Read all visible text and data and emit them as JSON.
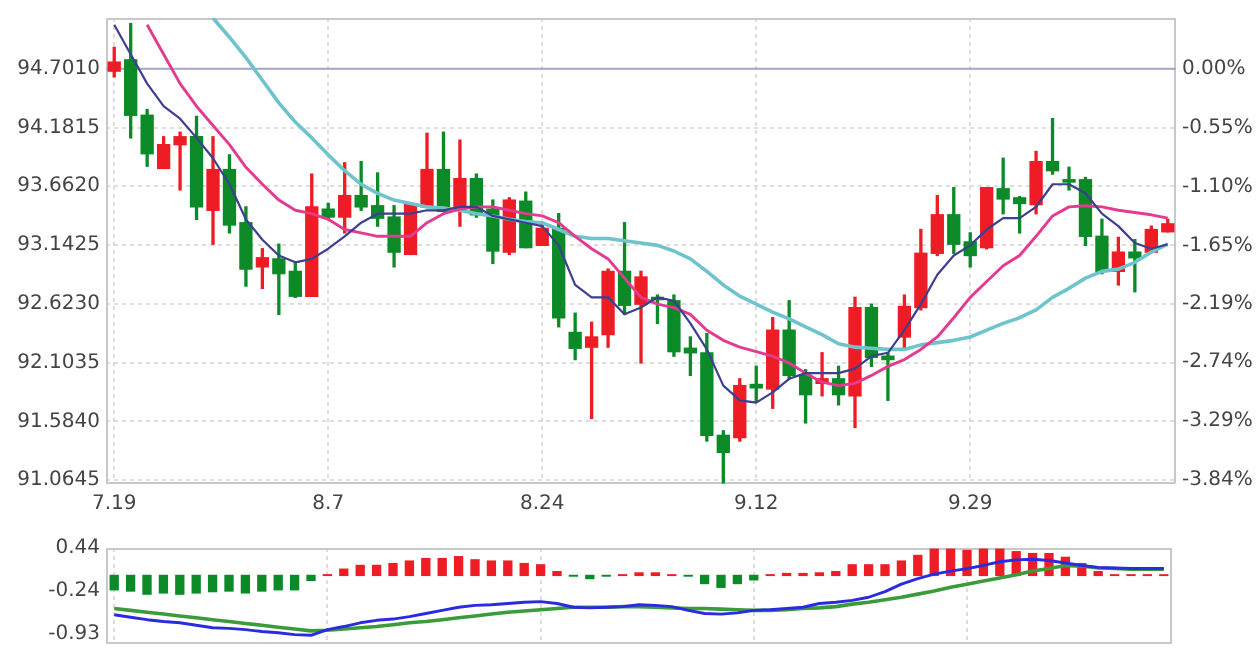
{
  "chart_data": [
    {
      "type": "candlestick",
      "categories": [
        "7.19",
        null,
        null,
        null,
        null,
        null,
        null,
        null,
        null,
        null,
        null,
        null,
        null,
        "8.7",
        null,
        null,
        null,
        null,
        null,
        null,
        null,
        null,
        null,
        null,
        null,
        null,
        "8.24",
        null,
        null,
        null,
        null,
        null,
        null,
        null,
        null,
        null,
        null,
        null,
        null,
        "9.12",
        null,
        null,
        null,
        null,
        null,
        null,
        null,
        null,
        null,
        null,
        null,
        null,
        "9.29",
        null,
        null,
        null,
        null,
        null,
        null,
        null,
        null,
        null,
        null,
        null,
        null
      ],
      "ohlc": [
        [
          94.68,
          94.89,
          94.63,
          94.76
        ],
        [
          94.78,
          95.1,
          94.09,
          94.29
        ],
        [
          94.29,
          94.34,
          93.84,
          93.95
        ],
        [
          93.82,
          94.1,
          93.82,
          94.03
        ],
        [
          94.03,
          94.14,
          93.63,
          94.1
        ],
        [
          94.1,
          94.28,
          93.37,
          93.48
        ],
        [
          93.45,
          94.1,
          93.15,
          93.81
        ],
        [
          93.81,
          93.94,
          93.25,
          93.32
        ],
        [
          93.34,
          93.48,
          92.78,
          92.93
        ],
        [
          92.95,
          93.11,
          92.76,
          93.03
        ],
        [
          93.02,
          93.15,
          92.53,
          92.89
        ],
        [
          92.91,
          92.99,
          92.68,
          92.69
        ],
        [
          92.69,
          93.77,
          92.69,
          93.48
        ],
        [
          93.46,
          93.51,
          93.38,
          93.39
        ],
        [
          93.39,
          93.87,
          93.25,
          93.58
        ],
        [
          93.58,
          93.88,
          93.45,
          93.48
        ],
        [
          93.49,
          93.78,
          93.31,
          93.38
        ],
        [
          93.39,
          93.49,
          92.95,
          93.08
        ],
        [
          93.06,
          93.51,
          93.06,
          93.5
        ],
        [
          93.48,
          94.13,
          93.48,
          93.81
        ],
        [
          93.81,
          94.14,
          93.44,
          93.44
        ],
        [
          93.45,
          94.07,
          93.31,
          93.73
        ],
        [
          93.73,
          93.77,
          93.39,
          93.41
        ],
        [
          93.46,
          93.54,
          92.98,
          93.09
        ],
        [
          93.08,
          93.56,
          93.06,
          93.54
        ],
        [
          93.53,
          93.61,
          93.12,
          93.12
        ],
        [
          93.14,
          93.34,
          93.14,
          93.29
        ],
        [
          93.29,
          93.42,
          92.42,
          92.5
        ],
        [
          92.37,
          92.54,
          92.13,
          92.23
        ],
        [
          92.24,
          92.46,
          91.61,
          92.33
        ],
        [
          92.35,
          92.93,
          92.24,
          92.91
        ],
        [
          92.91,
          93.34,
          92.53,
          92.61
        ],
        [
          92.62,
          92.91,
          92.1,
          92.86
        ],
        [
          92.68,
          92.7,
          92.45,
          92.66
        ],
        [
          92.65,
          92.7,
          92.16,
          92.2
        ],
        [
          92.23,
          92.33,
          91.99,
          92.19
        ],
        [
          92.19,
          92.36,
          91.41,
          91.46
        ],
        [
          91.46,
          91.5,
          91.04,
          91.31
        ],
        [
          91.44,
          91.96,
          91.41,
          91.9
        ],
        [
          91.91,
          92.07,
          91.76,
          91.88
        ],
        [
          91.87,
          92.5,
          91.7,
          92.39
        ],
        [
          92.39,
          92.65,
          91.96,
          91.99
        ],
        [
          91.99,
          92.04,
          91.57,
          91.82
        ],
        [
          91.92,
          92.19,
          91.81,
          91.96
        ],
        [
          91.96,
          92.07,
          91.73,
          91.82
        ],
        [
          91.81,
          92.68,
          91.53,
          92.59
        ],
        [
          92.59,
          92.62,
          92.07,
          92.15
        ],
        [
          92.16,
          92.19,
          91.77,
          92.13
        ],
        [
          92.33,
          92.7,
          92.22,
          92.6
        ],
        [
          92.59,
          93.28,
          92.57,
          93.07
        ],
        [
          93.07,
          93.58,
          93.05,
          93.41
        ],
        [
          93.41,
          93.65,
          93.07,
          93.15
        ],
        [
          93.17,
          93.25,
          92.95,
          93.05
        ],
        [
          93.12,
          93.65,
          93.11,
          93.65
        ],
        [
          93.64,
          93.91,
          93.42,
          93.55
        ],
        [
          93.56,
          93.57,
          93.25,
          93.51
        ],
        [
          93.5,
          93.97,
          93.42,
          93.88
        ],
        [
          93.88,
          94.26,
          93.77,
          93.8
        ],
        [
          93.72,
          93.83,
          93.63,
          93.7
        ],
        [
          93.72,
          93.74,
          93.14,
          93.22
        ],
        [
          93.22,
          93.37,
          92.89,
          92.91
        ],
        [
          92.91,
          93.21,
          92.79,
          93.08
        ],
        [
          93.08,
          93.19,
          92.73,
          93.03
        ],
        [
          93.08,
          93.31,
          93.08,
          93.28
        ],
        [
          93.26,
          93.37,
          93.26,
          93.33
        ]
      ],
      "colors": [
        "#ee1c25",
        "#0b8a27",
        "#0b8a27",
        "#ee1c25",
        "#ee1c25",
        "#0b8a27",
        "#ee1c25",
        "#0b8a27",
        "#0b8a27",
        "#ee1c25",
        "#0b8a27",
        "#0b8a27",
        "#ee1c25",
        "#0b8a27",
        "#ee1c25",
        "#0b8a27",
        "#0b8a27",
        "#0b8a27",
        "#ee1c25",
        "#ee1c25",
        "#0b8a27",
        "#ee1c25",
        "#0b8a27",
        "#0b8a27",
        "#ee1c25",
        "#0b8a27",
        "#ee1c25",
        "#0b8a27",
        "#0b8a27",
        "#ee1c25",
        "#ee1c25",
        "#0b8a27",
        "#ee1c25",
        "#0b8a27",
        "#0b8a27",
        "#0b8a27",
        "#0b8a27",
        "#0b8a27",
        "#ee1c25",
        "#0b8a27",
        "#ee1c25",
        "#0b8a27",
        "#0b8a27",
        "#ee1c25",
        "#0b8a27",
        "#ee1c25",
        "#0b8a27",
        "#0b8a27",
        "#ee1c25",
        "#ee1c25",
        "#ee1c25",
        "#0b8a27",
        "#0b8a27",
        "#ee1c25",
        "#0b8a27",
        "#0b8a27",
        "#ee1c25",
        "#0b8a27",
        "#0b8a27",
        "#0b8a27",
        "#0b8a27",
        "#ee1c25",
        "#0b8a27",
        "#ee1c25",
        "#ee1c25"
      ],
      "series": [
        {
          "type": "line",
          "color": "#3d3f8f",
          "values": [
            95.09,
            94.83,
            94.57,
            94.37,
            94.26,
            94.09,
            93.91,
            93.68,
            93.37,
            93.19,
            93.05,
            92.99,
            93.02,
            93.11,
            93.22,
            93.34,
            93.42,
            93.42,
            93.42,
            93.45,
            93.45,
            93.48,
            93.48,
            93.4,
            93.37,
            93.34,
            93.31,
            93.14,
            92.79,
            92.68,
            92.68,
            92.53,
            92.59,
            92.68,
            92.65,
            92.45,
            92.22,
            91.9,
            91.77,
            91.75,
            91.84,
            91.96,
            92.01,
            92.01,
            92.01,
            92.05,
            92.16,
            92.19,
            92.39,
            92.62,
            92.88,
            93.05,
            93.14,
            93.28,
            93.38,
            93.38,
            93.48,
            93.68,
            93.68,
            93.6,
            93.42,
            93.31,
            93.16,
            93.11,
            93.15
          ]
        },
        {
          "type": "line",
          "color": "#e33b8f",
          "values": [
            null,
            null,
            95.09,
            94.83,
            94.57,
            94.37,
            94.2,
            94.03,
            93.83,
            93.68,
            93.54,
            93.45,
            93.42,
            93.37,
            93.28,
            93.25,
            93.22,
            93.22,
            93.22,
            93.34,
            93.42,
            93.46,
            93.48,
            93.48,
            93.45,
            93.42,
            93.4,
            93.34,
            93.22,
            93.11,
            93.02,
            92.85,
            92.68,
            92.62,
            92.59,
            92.53,
            92.39,
            92.3,
            92.24,
            92.2,
            92.16,
            92.1,
            92.01,
            91.93,
            91.9,
            91.92,
            91.99,
            92.07,
            92.13,
            92.22,
            92.33,
            92.5,
            92.68,
            92.82,
            92.96,
            93.05,
            93.22,
            93.4,
            93.48,
            93.49,
            93.48,
            93.45,
            93.43,
            93.41,
            93.38
          ]
        },
        {
          "type": "line",
          "color": "#6ec3cc",
          "values": [
            null,
            null,
            null,
            null,
            null,
            null,
            95.15,
            94.98,
            94.8,
            94.6,
            94.4,
            94.23,
            94.09,
            93.94,
            93.8,
            93.68,
            93.6,
            93.54,
            93.51,
            93.48,
            93.47,
            93.45,
            93.42,
            93.4,
            93.37,
            93.35,
            93.34,
            93.28,
            93.22,
            93.2,
            93.2,
            93.18,
            93.16,
            93.14,
            93.09,
            93.02,
            92.91,
            92.79,
            92.69,
            92.62,
            92.55,
            92.49,
            92.42,
            92.35,
            92.27,
            92.24,
            92.23,
            92.22,
            92.22,
            92.26,
            92.28,
            92.3,
            92.33,
            92.39,
            92.45,
            92.5,
            92.57,
            92.68,
            92.76,
            92.85,
            92.91,
            92.93,
            92.99,
            93.08,
            93.15
          ]
        }
      ],
      "ylim": [
        91.03,
        95.15
      ],
      "yticks": [
        {
          "value": 94.701,
          "label": "94.7010"
        },
        {
          "value": 94.1815,
          "label": "94.1815"
        },
        {
          "value": 93.662,
          "label": "93.6620"
        },
        {
          "value": 93.1425,
          "label": "93.1425"
        },
        {
          "value": 92.623,
          "label": "92.6230"
        },
        {
          "value": 92.1035,
          "label": "92.1035"
        },
        {
          "value": 91.584,
          "label": "91.5840"
        },
        {
          "value": 91.0645,
          "label": "91.0645"
        }
      ],
      "y2lim": [
        -3.876,
        0.474
      ],
      "y2ticks": [
        {
          "value": 0,
          "label": "0.00%"
        },
        {
          "value": -0.55,
          "label": "-0.55%"
        },
        {
          "value": -1.1,
          "label": "-1.10%"
        },
        {
          "value": -1.65,
          "label": "-1.65%"
        },
        {
          "value": -2.19,
          "label": "-2.19%"
        },
        {
          "value": -2.74,
          "label": "-2.74%"
        },
        {
          "value": -3.29,
          "label": "-3.29%"
        },
        {
          "value": -3.84,
          "label": "-3.84%"
        }
      ],
      "ref_lines": [
        {
          "axis": "y",
          "value": 94.701,
          "color": "#a4a6c8"
        }
      ],
      "grid": true,
      "legend": false
    },
    {
      "type": "bar",
      "categories": [
        "7.19",
        null,
        null,
        null,
        null,
        null,
        null,
        null,
        null,
        null,
        null,
        null,
        null,
        "8.7",
        null,
        null,
        null,
        null,
        null,
        null,
        null,
        null,
        null,
        null,
        null,
        null,
        "8.24",
        null,
        null,
        null,
        null,
        null,
        null,
        null,
        null,
        null,
        null,
        null,
        null,
        "9.12",
        null,
        null,
        null,
        null,
        null,
        null,
        null,
        null,
        null,
        null,
        null,
        null,
        "9.29",
        null,
        null,
        null,
        null,
        null,
        null,
        null,
        null,
        null,
        null,
        null,
        null
      ],
      "series": [
        {
          "type": "bar",
          "values": [
            -0.23,
            -0.25,
            -0.3,
            -0.28,
            -0.3,
            -0.28,
            -0.26,
            -0.25,
            -0.28,
            -0.25,
            -0.23,
            -0.23,
            -0.08,
            0.01,
            0.1,
            0.16,
            0.16,
            0.19,
            0.23,
            0.27,
            0.27,
            0.3,
            0.25,
            0.23,
            0.23,
            0.19,
            0.17,
            0.06,
            -0.01,
            -0.05,
            -0.01,
            0.01,
            0.04,
            0.04,
            0.01,
            -0.01,
            -0.13,
            -0.19,
            -0.13,
            -0.07,
            0.01,
            0.03,
            0.03,
            0.04,
            0.06,
            0.17,
            0.17,
            0.17,
            0.23,
            0.32,
            0.42,
            0.42,
            0.4,
            0.42,
            0.42,
            0.38,
            0.35,
            0.35,
            0.29,
            0.19,
            0.06,
            0.01,
            0.01,
            0.01,
            0.01
          ],
          "colors": [
            "#0b8a27",
            "#0b8a27",
            "#0b8a27",
            "#0b8a27",
            "#0b8a27",
            "#0b8a27",
            "#0b8a27",
            "#0b8a27",
            "#0b8a27",
            "#0b8a27",
            "#0b8a27",
            "#0b8a27",
            "#0b8a27",
            "#ee1c25",
            "#ee1c25",
            "#ee1c25",
            "#ee1c25",
            "#ee1c25",
            "#ee1c25",
            "#ee1c25",
            "#ee1c25",
            "#ee1c25",
            "#ee1c25",
            "#ee1c25",
            "#ee1c25",
            "#ee1c25",
            "#ee1c25",
            "#ee1c25",
            "#0b8a27",
            "#0b8a27",
            "#0b8a27",
            "#ee1c25",
            "#ee1c25",
            "#ee1c25",
            "#ee1c25",
            "#0b8a27",
            "#0b8a27",
            "#0b8a27",
            "#0b8a27",
            "#0b8a27",
            "#ee1c25",
            "#ee1c25",
            "#ee1c25",
            "#ee1c25",
            "#ee1c25",
            "#ee1c25",
            "#ee1c25",
            "#ee1c25",
            "#ee1c25",
            "#ee1c25",
            "#ee1c25",
            "#ee1c25",
            "#ee1c25",
            "#ee1c25",
            "#ee1c25",
            "#ee1c25",
            "#ee1c25",
            "#ee1c25",
            "#ee1c25",
            "#ee1c25",
            "#ee1c25",
            "#ee1c25",
            "#ee1c25",
            "#ee1c25",
            "#ee1c25"
          ]
        },
        {
          "type": "line",
          "color": "#2a2ae0",
          "values": [
            -0.63,
            -0.67,
            -0.71,
            -0.74,
            -0.76,
            -0.8,
            -0.84,
            -0.85,
            -0.87,
            -0.9,
            -0.92,
            -0.95,
            -0.96,
            -0.87,
            -0.82,
            -0.76,
            -0.72,
            -0.7,
            -0.66,
            -0.61,
            -0.56,
            -0.51,
            -0.48,
            -0.47,
            -0.45,
            -0.43,
            -0.42,
            -0.45,
            -0.51,
            -0.52,
            -0.51,
            -0.5,
            -0.47,
            -0.48,
            -0.5,
            -0.56,
            -0.61,
            -0.62,
            -0.6,
            -0.56,
            -0.55,
            -0.53,
            -0.51,
            -0.45,
            -0.43,
            -0.4,
            -0.35,
            -0.26,
            -0.14,
            -0.05,
            0.02,
            0.07,
            0.11,
            0.16,
            0.22,
            0.25,
            0.26,
            0.24,
            0.2,
            0.16,
            0.13,
            0.12,
            0.11,
            0.11,
            0.11
          ]
        },
        {
          "type": "line",
          "color": "#3b9b3b",
          "values": [
            -0.53,
            -0.56,
            -0.59,
            -0.62,
            -0.65,
            -0.68,
            -0.71,
            -0.74,
            -0.77,
            -0.8,
            -0.83,
            -0.86,
            -0.89,
            -0.88,
            -0.86,
            -0.84,
            -0.82,
            -0.79,
            -0.76,
            -0.74,
            -0.71,
            -0.68,
            -0.65,
            -0.62,
            -0.59,
            -0.57,
            -0.55,
            -0.53,
            -0.51,
            -0.51,
            -0.51,
            -0.5,
            -0.5,
            -0.51,
            -0.52,
            -0.53,
            -0.53,
            -0.54,
            -0.55,
            -0.56,
            -0.56,
            -0.55,
            -0.53,
            -0.52,
            -0.5,
            -0.46,
            -0.43,
            -0.39,
            -0.35,
            -0.3,
            -0.25,
            -0.19,
            -0.14,
            -0.09,
            -0.04,
            0.01,
            0.07,
            0.11,
            0.16,
            0.15,
            0.12,
            0.11,
            0.1,
            0.1,
            0.1
          ]
        }
      ],
      "ylim": [
        -1.1,
        0.44
      ],
      "yticks": [
        0.44,
        -0.24,
        -0.93
      ],
      "grid": "x",
      "tick_labels": "y",
      "legend": false
    }
  ]
}
